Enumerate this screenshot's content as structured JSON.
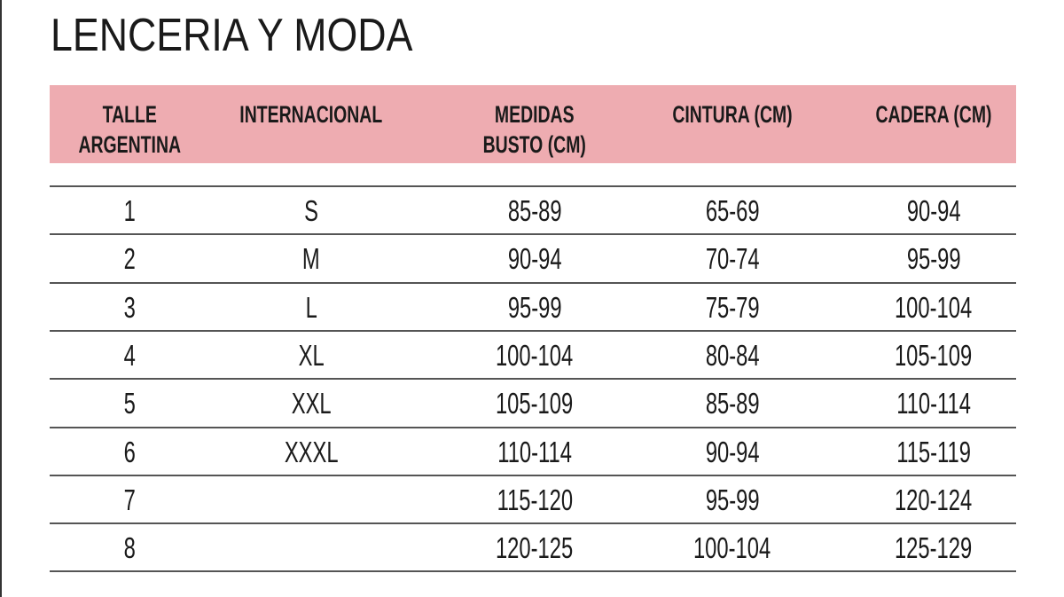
{
  "title": "LENCERIA Y MODA",
  "header_color": "#eeacb1",
  "columns": [
    "TALLE\nARGENTINA",
    "INTERNACIONAL",
    "MEDIDAS\nBUSTO (CM)",
    "CINTURA (CM)",
    "CADERA (CM)"
  ],
  "rows": [
    [
      "1",
      "S",
      "85-89",
      "65-69",
      "90-94"
    ],
    [
      "2",
      "M",
      "90-94",
      "70-74",
      "95-99"
    ],
    [
      "3",
      "L",
      "95-99",
      "75-79",
      "100-104"
    ],
    [
      "4",
      "XL",
      "100-104",
      "80-84",
      "105-109"
    ],
    [
      "5",
      "XXL",
      "105-109",
      "85-89",
      "110-114"
    ],
    [
      "6",
      "XXXL",
      "110-114",
      "90-94",
      "115-119"
    ],
    [
      "7",
      "",
      "115-120",
      "95-99",
      "120-124"
    ],
    [
      "8",
      "",
      "120-125",
      "100-104",
      "125-129"
    ]
  ]
}
